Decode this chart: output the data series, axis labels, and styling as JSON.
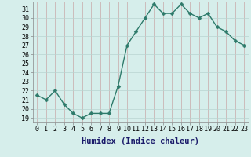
{
  "x": [
    0,
    1,
    2,
    3,
    4,
    5,
    6,
    7,
    8,
    9,
    10,
    11,
    12,
    13,
    14,
    15,
    16,
    17,
    18,
    19,
    20,
    21,
    22,
    23
  ],
  "y": [
    21.5,
    21.0,
    22.0,
    20.5,
    19.5,
    19.0,
    19.5,
    19.5,
    19.5,
    22.5,
    27.0,
    28.5,
    30.0,
    31.5,
    30.5,
    30.5,
    31.5,
    30.5,
    30.0,
    30.5,
    29.0,
    28.5,
    27.5,
    27.0
  ],
  "line_color": "#2d7a6a",
  "marker": "D",
  "marker_size": 2.5,
  "bg_color": "#d6eeeb",
  "grid_color_v": "#c8a8a8",
  "grid_color_h": "#b8d4d0",
  "xlabel": "Humidex (Indice chaleur)",
  "xlabel_fontsize": 7.5,
  "tick_fontsize": 6,
  "ylim_min": 18.5,
  "ylim_max": 31.8,
  "yticks": [
    19,
    20,
    21,
    22,
    23,
    24,
    25,
    26,
    27,
    28,
    29,
    30,
    31
  ],
  "xticks": [
    0,
    1,
    2,
    3,
    4,
    5,
    6,
    7,
    8,
    9,
    10,
    11,
    12,
    13,
    14,
    15,
    16,
    17,
    18,
    19,
    20,
    21,
    22,
    23
  ],
  "xtick_labels": [
    "0",
    "1",
    "2",
    "3",
    "4",
    "5",
    "6",
    "7",
    "8",
    "9",
    "10",
    "11",
    "12",
    "13",
    "14",
    "15",
    "16",
    "17",
    "18",
    "19",
    "20",
    "21",
    "22",
    "23"
  ],
  "line_width": 1.0
}
